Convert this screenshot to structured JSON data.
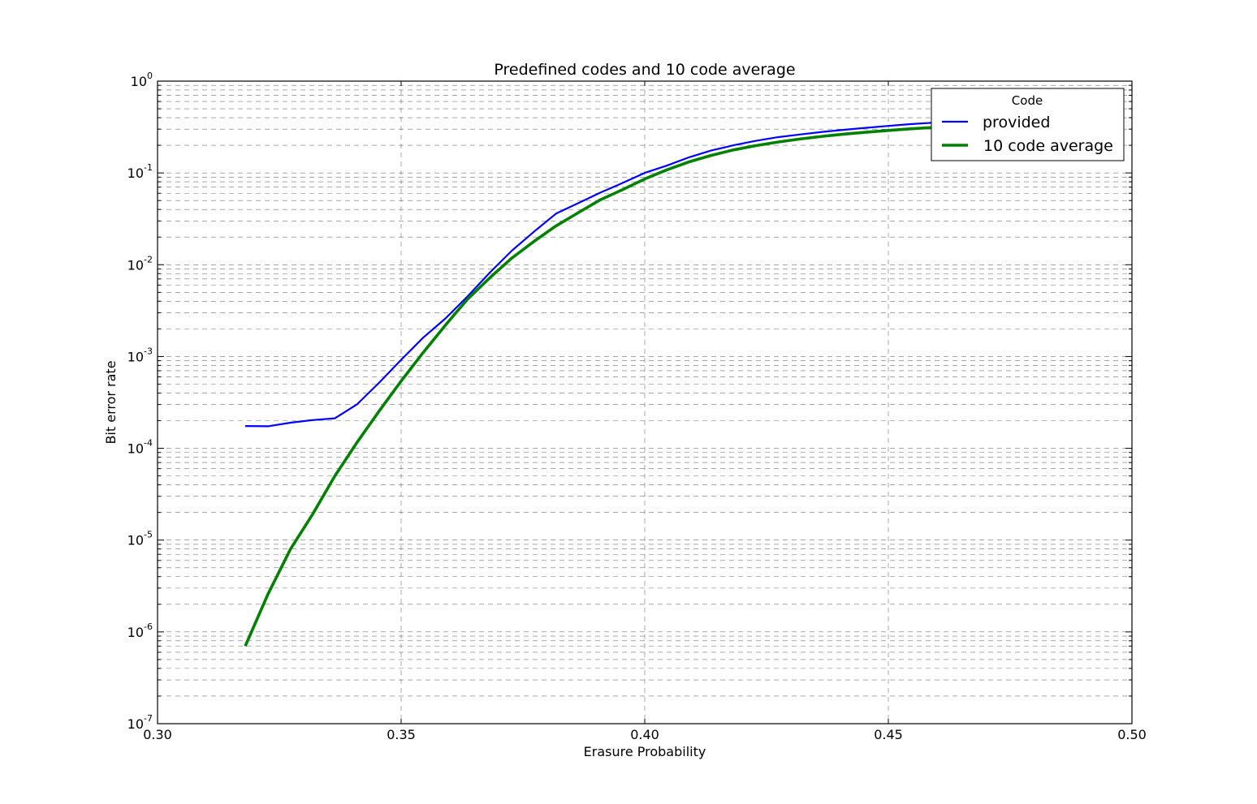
{
  "chart_data": {
    "type": "line",
    "title": "Predefined codes and 10 code average",
    "xlabel": "Erasure Probability",
    "ylabel": "Bit error rate",
    "xlim": [
      0.3,
      0.5
    ],
    "ylim": [
      1e-07,
      1
    ],
    "yscale": "log",
    "grid": true,
    "xticks": [
      0.3,
      0.35,
      0.4,
      0.45,
      0.5
    ],
    "xtick_labels": [
      "0.30",
      "0.35",
      "0.40",
      "0.45",
      "0.50"
    ],
    "yticks": [
      {
        "base": "10",
        "exp": "-7",
        "value": 1e-07
      },
      {
        "base": "10",
        "exp": "-6",
        "value": 1e-06
      },
      {
        "base": "10",
        "exp": "-5",
        "value": 1e-05
      },
      {
        "base": "10",
        "exp": "-4",
        "value": 0.0001
      },
      {
        "base": "10",
        "exp": "-3",
        "value": 0.001
      },
      {
        "base": "10",
        "exp": "-2",
        "value": 0.01
      },
      {
        "base": "10",
        "exp": "-1",
        "value": 0.1
      },
      {
        "base": "10",
        "exp": "0",
        "value": 1
      }
    ],
    "legend": {
      "title": "Code",
      "placement": "top-right"
    },
    "series": [
      {
        "name": "provided",
        "color": "#0000ff",
        "x": [
          0.318,
          0.3227,
          0.3273,
          0.3318,
          0.3364,
          0.3409,
          0.3455,
          0.35,
          0.3545,
          0.3591,
          0.3636,
          0.3682,
          0.3727,
          0.3773,
          0.3818,
          0.3864,
          0.3909,
          0.3955,
          0.4,
          0.4045,
          0.4091,
          0.4136,
          0.4182,
          0.4227,
          0.4273,
          0.4318,
          0.4364,
          0.4409,
          0.4455,
          0.45,
          0.4545,
          0.4591,
          0.4636,
          0.4682
        ],
        "y": [
          0.000175,
          0.000174,
          0.00019,
          0.000203,
          0.000212,
          0.0003,
          0.00052,
          0.00092,
          0.0016,
          0.0026,
          0.0045,
          0.0082,
          0.0142,
          0.023,
          0.036,
          0.047,
          0.061,
          0.078,
          0.1,
          0.12,
          0.148,
          0.175,
          0.2,
          0.223,
          0.245,
          0.262,
          0.28,
          0.295,
          0.31,
          0.325,
          0.34,
          0.352,
          0.362,
          0.37
        ]
      },
      {
        "name": "10 code average",
        "color": "#008000",
        "x": [
          0.318,
          0.3227,
          0.3273,
          0.3318,
          0.3364,
          0.3409,
          0.3455,
          0.35,
          0.3545,
          0.3591,
          0.3636,
          0.3682,
          0.3727,
          0.3773,
          0.3818,
          0.3864,
          0.3909,
          0.3955,
          0.4,
          0.4045,
          0.4091,
          0.4136,
          0.4182,
          0.4227,
          0.4273,
          0.4318,
          0.4364,
          0.4409,
          0.4455,
          0.45,
          0.4545,
          0.4591,
          0.4636,
          0.4682
        ],
        "y": [
          7e-07,
          2.6e-06,
          8e-06,
          1.9e-05,
          5e-05,
          0.000115,
          0.000255,
          0.00054,
          0.0011,
          0.0022,
          0.0042,
          0.0072,
          0.0118,
          0.018,
          0.0265,
          0.037,
          0.051,
          0.066,
          0.086,
          0.108,
          0.132,
          0.155,
          0.178,
          0.198,
          0.217,
          0.234,
          0.25,
          0.265,
          0.278,
          0.29,
          0.302,
          0.313,
          0.323,
          0.332
        ]
      }
    ]
  }
}
